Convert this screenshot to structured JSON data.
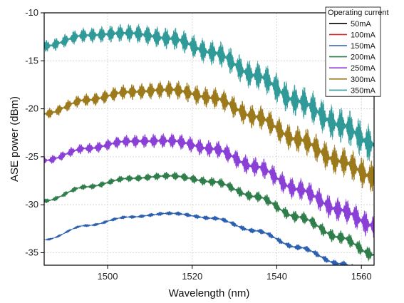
{
  "chart_data": {
    "type": "line",
    "title": "",
    "xlabel": "Wavelength (nm)",
    "ylabel": "ASE power (dBm)",
    "xlim": [
      1485,
      1563
    ],
    "ylim": [
      -36.3,
      -10
    ],
    "xticks": [
      1500,
      1520,
      1540,
      1560
    ],
    "yticks": [
      -10,
      -15,
      -20,
      -25,
      -30,
      -35
    ],
    "grid": true,
    "legend": {
      "title": "Operating current",
      "position": "top-right"
    },
    "series": [
      {
        "name": "50mA",
        "color": "#000000",
        "x": [],
        "y": []
      },
      {
        "name": "100mA",
        "color": "#d62728",
        "x": [],
        "y": []
      },
      {
        "name": "150mA",
        "color": "#2b5fb0",
        "ripple": 0.25,
        "x": [
          1485,
          1495,
          1505,
          1515,
          1525,
          1535,
          1545,
          1555,
          1563
        ],
        "y": [
          -33.6,
          -32.1,
          -31.2,
          -30.8,
          -31.3,
          -32.6,
          -34.3,
          -36.0,
          -37.3
        ]
      },
      {
        "name": "200mA",
        "color": "#2f7d4a",
        "ripple": 0.5,
        "x": [
          1485,
          1495,
          1505,
          1515,
          1525,
          1535,
          1545,
          1555,
          1563
        ],
        "y": [
          -29.5,
          -28.0,
          -27.1,
          -26.8,
          -27.4,
          -28.9,
          -31.0,
          -33.1,
          -34.9
        ]
      },
      {
        "name": "250mA",
        "color": "#8a3fd6",
        "ripple": 0.9,
        "x": [
          1485,
          1495,
          1505,
          1515,
          1525,
          1535,
          1545,
          1555,
          1563
        ],
        "y": [
          -25.2,
          -23.9,
          -23.1,
          -23.0,
          -23.8,
          -25.6,
          -27.9,
          -30.0,
          -31.6
        ]
      },
      {
        "name": "300mA",
        "color": "#9c7a1c",
        "ripple": 1.1,
        "x": [
          1485,
          1495,
          1505,
          1515,
          1525,
          1535,
          1545,
          1555,
          1563
        ],
        "y": [
          -20.3,
          -18.8,
          -17.9,
          -17.6,
          -18.4,
          -20.3,
          -22.6,
          -24.8,
          -26.4
        ]
      },
      {
        "name": "350mA",
        "color": "#2f9a98",
        "ripple": 1.3,
        "x": [
          1485,
          1495,
          1505,
          1515,
          1525,
          1535,
          1545,
          1555,
          1563
        ],
        "y": [
          -13.2,
          -12.0,
          -11.7,
          -12.2,
          -13.6,
          -15.9,
          -18.5,
          -20.9,
          -22.9
        ]
      }
    ]
  }
}
